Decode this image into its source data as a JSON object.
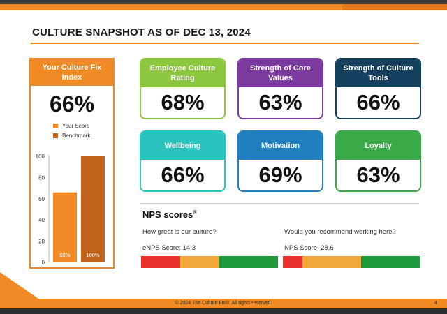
{
  "page": {
    "title": "CULTURE SNAPSHOT AS OF DEC 13, 2024",
    "footer": "© 2024 The Culture Fix®. All rights reserved.",
    "page_number": "4"
  },
  "index_panel": {
    "title": "Your Culture Fix Index",
    "value": "66%",
    "legend": [
      {
        "label": "Your Score",
        "color": "#f08a24"
      },
      {
        "label": "Benchmark",
        "color": "#c0621a"
      }
    ]
  },
  "chart_data": {
    "type": "bar",
    "categories": [
      "Your Score",
      "Benchmark"
    ],
    "values": [
      66,
      100
    ],
    "data_labels": [
      "66%",
      "100%"
    ],
    "colors": [
      "#f08a24",
      "#c0621a"
    ],
    "ylim": [
      0,
      100
    ],
    "yticks": [
      "0",
      "20",
      "40",
      "60",
      "80",
      "100"
    ],
    "title": "",
    "xlabel": "",
    "ylabel": ""
  },
  "cards": [
    {
      "label": "Employee Culture Rating",
      "value": "68%",
      "color": "#8dc63f"
    },
    {
      "label": "Strength of Core Values",
      "value": "63%",
      "color": "#7a3a9e"
    },
    {
      "label": "Strength of Culture Tools",
      "value": "66%",
      "color": "#15405e"
    },
    {
      "label": "Wellbeing",
      "value": "66%",
      "color": "#29c4c0"
    },
    {
      "label": "Motivation",
      "value": "69%",
      "color": "#1f7fbf"
    },
    {
      "label": "Loyalty",
      "value": "63%",
      "color": "#3aaa49"
    }
  ],
  "nps": {
    "title": "NPS scores",
    "title_mark": "®",
    "enps": {
      "question": "How great is our culture?",
      "score_label": "eNPS Score: 14.3"
    },
    "nps": {
      "question": "Would you recommend working here?",
      "score_label": "NPS Score: 28.6"
    },
    "bar_colors": {
      "red": "#e8312a",
      "yellow": "#f2a93b",
      "green": "#1f9a3a"
    }
  }
}
